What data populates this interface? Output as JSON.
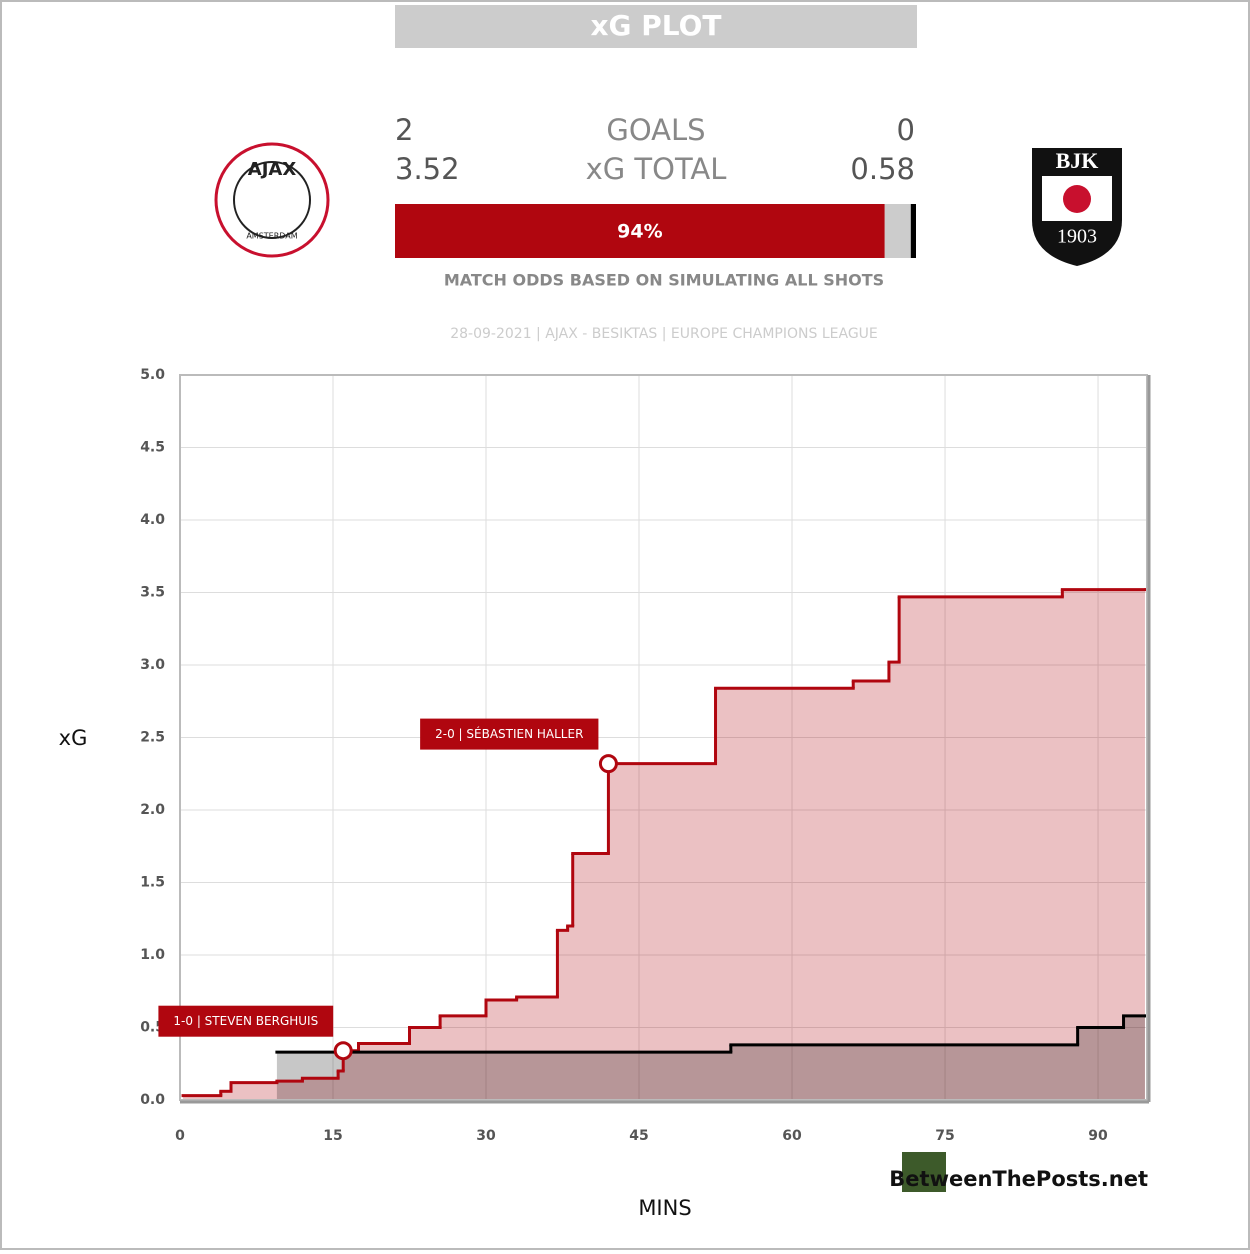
{
  "header": {
    "title": "xG PLOT",
    "home": {
      "logo_top": "AJAX",
      "logo_bottom": "AMSTERDAM",
      "goals": 2,
      "xg": 3.52
    },
    "away": {
      "logo_top": "BJK",
      "logo_bottom": "1903",
      "goals": 0,
      "xg": 0.58
    },
    "goals_label": "GOALS",
    "xg_label": "xG TOTAL",
    "odds": {
      "values": [
        94,
        5,
        1
      ],
      "colors": [
        "#b0060f",
        "#cccccc",
        "#000000"
      ],
      "home_label": "94%"
    },
    "odds_caption": "MATCH ODDS BASED ON SIMULATING ALL SHOTS",
    "match_info": "28-09-2021 | AJAX - BESIKTAS | EUROPE CHAMPIONS LEAGUE"
  },
  "credit": "BetweenThePosts.net",
  "chart_data": {
    "type": "step",
    "xlabel": "MINS",
    "ylabel": "xG",
    "xlim": [
      0,
      94.8
    ],
    "ylim": [
      0,
      5
    ],
    "xticks": [
      0,
      15,
      30,
      45,
      60,
      75,
      90
    ],
    "yticks": [
      {
        "value": 0,
        "label": "0.0"
      },
      0.5,
      {
        "value": 1,
        "label": "1.0"
      },
      1.5,
      {
        "value": 2,
        "label": "2.0"
      },
      2.5,
      {
        "value": 3,
        "label": "3.0"
      },
      3.5,
      {
        "value": 4,
        "label": "4.0"
      },
      4.5,
      {
        "value": 5,
        "label": "5.0"
      }
    ],
    "grid": true,
    "series": [
      {
        "name": "Ajax",
        "color": "#b0060f",
        "x": [
          0.3,
          4,
          5,
          9.5,
          12,
          15.5,
          16,
          17.5,
          22.5,
          25.5,
          30,
          33,
          37,
          38,
          38.5,
          42,
          52.5,
          66,
          69.5,
          70.5,
          86.5,
          94.6
        ],
        "values": [
          0.03,
          0.06,
          0.12,
          0.13,
          0.15,
          0.2,
          0.34,
          0.39,
          0.5,
          0.58,
          0.69,
          0.71,
          1.17,
          1.2,
          1.7,
          2.32,
          2.84,
          2.89,
          3.02,
          3.47,
          3.52,
          3.52
        ]
      },
      {
        "name": "Besiktas",
        "color": "#000000",
        "x": [
          9.5,
          54,
          88,
          92.5,
          94.6
        ],
        "values": [
          0.33,
          0.38,
          0.5,
          0.58,
          0.58
        ]
      }
    ],
    "annotations": [
      {
        "text": "1-0 | STEVEN BERGHUIS",
        "x": 16,
        "y": 0.34
      },
      {
        "text": "2-0 | SÉBASTIEN HALLER",
        "x": 42,
        "y": 2.32
      }
    ]
  }
}
